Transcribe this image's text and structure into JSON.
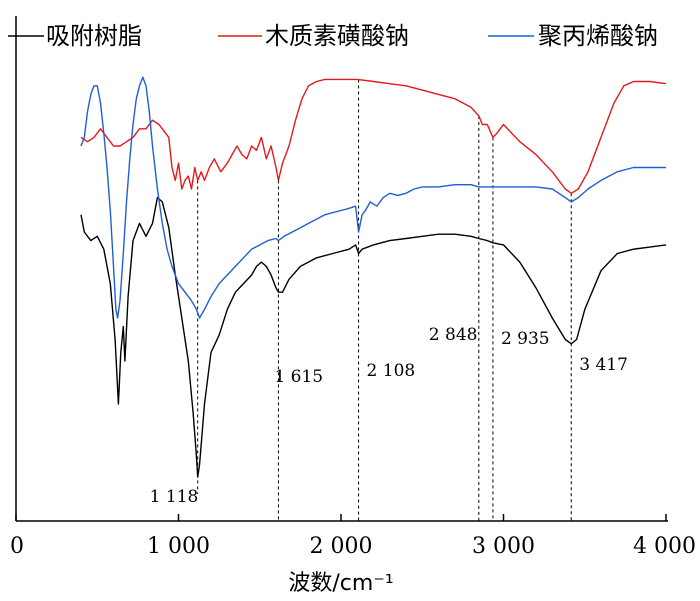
{
  "chart_data": {
    "type": "line",
    "xlabel": "波数/cm⁻¹",
    "ylabel": "",
    "xlim": [
      0,
      4000
    ],
    "ylim": [
      0,
      100
    ],
    "x_ticks": [
      0,
      1000,
      2000,
      3000,
      4000
    ],
    "x_tick_labels": [
      "0",
      "1 000",
      "2 000",
      "3 000",
      "4 000"
    ],
    "grid": false,
    "legend_position": "top",
    "series": [
      {
        "name": "吸附树脂",
        "color": "#000000",
        "points": [
          [
            400,
            64
          ],
          [
            420,
            60
          ],
          [
            460,
            58
          ],
          [
            500,
            59
          ],
          [
            540,
            56
          ],
          [
            580,
            48
          ],
          [
            610,
            35
          ],
          [
            630,
            20
          ],
          [
            645,
            32
          ],
          [
            660,
            38
          ],
          [
            670,
            30
          ],
          [
            690,
            45
          ],
          [
            720,
            58
          ],
          [
            760,
            62
          ],
          [
            800,
            59
          ],
          [
            840,
            62
          ],
          [
            870,
            68
          ],
          [
            900,
            67
          ],
          [
            940,
            61
          ],
          [
            980,
            50
          ],
          [
            1020,
            40
          ],
          [
            1060,
            30
          ],
          [
            1090,
            18
          ],
          [
            1110,
            8
          ],
          [
            1118,
            3
          ],
          [
            1130,
            6
          ],
          [
            1160,
            20
          ],
          [
            1200,
            32
          ],
          [
            1250,
            36
          ],
          [
            1300,
            42
          ],
          [
            1350,
            46
          ],
          [
            1400,
            48
          ],
          [
            1450,
            50
          ],
          [
            1480,
            52
          ],
          [
            1510,
            53
          ],
          [
            1540,
            52
          ],
          [
            1570,
            50
          ],
          [
            1600,
            47
          ],
          [
            1615,
            46
          ],
          [
            1640,
            46
          ],
          [
            1680,
            49
          ],
          [
            1750,
            52
          ],
          [
            1850,
            54
          ],
          [
            1950,
            55
          ],
          [
            2050,
            56
          ],
          [
            2090,
            57
          ],
          [
            2108,
            55
          ],
          [
            2130,
            56
          ],
          [
            2200,
            57
          ],
          [
            2300,
            58
          ],
          [
            2400,
            58.5
          ],
          [
            2500,
            59
          ],
          [
            2600,
            59.5
          ],
          [
            2700,
            59.5
          ],
          [
            2800,
            59
          ],
          [
            2848,
            58.5
          ],
          [
            2900,
            58
          ],
          [
            2935,
            57.5
          ],
          [
            3000,
            57
          ],
          [
            3100,
            53
          ],
          [
            3200,
            47
          ],
          [
            3300,
            40
          ],
          [
            3380,
            35
          ],
          [
            3417,
            34
          ],
          [
            3450,
            35
          ],
          [
            3500,
            42
          ],
          [
            3600,
            51
          ],
          [
            3700,
            55
          ],
          [
            3800,
            56
          ],
          [
            3900,
            56.5
          ],
          [
            4000,
            57
          ]
        ]
      },
      {
        "name": "木质素磺酸钠",
        "color": "#e31a1c",
        "points": [
          [
            400,
            82
          ],
          [
            440,
            81
          ],
          [
            480,
            82
          ],
          [
            520,
            84
          ],
          [
            560,
            82
          ],
          [
            600,
            80
          ],
          [
            640,
            80
          ],
          [
            680,
            81
          ],
          [
            720,
            82
          ],
          [
            760,
            84
          ],
          [
            800,
            84
          ],
          [
            840,
            86
          ],
          [
            880,
            85
          ],
          [
            900,
            84
          ],
          [
            940,
            82
          ],
          [
            960,
            75
          ],
          [
            980,
            72
          ],
          [
            1000,
            76
          ],
          [
            1020,
            70
          ],
          [
            1040,
            72
          ],
          [
            1060,
            73
          ],
          [
            1080,
            70
          ],
          [
            1100,
            75
          ],
          [
            1118,
            72
          ],
          [
            1140,
            74
          ],
          [
            1160,
            72
          ],
          [
            1190,
            75
          ],
          [
            1220,
            77
          ],
          [
            1260,
            74
          ],
          [
            1300,
            76
          ],
          [
            1330,
            78
          ],
          [
            1360,
            80
          ],
          [
            1390,
            78
          ],
          [
            1420,
            77
          ],
          [
            1450,
            80
          ],
          [
            1480,
            79
          ],
          [
            1510,
            82
          ],
          [
            1540,
            77
          ],
          [
            1570,
            80
          ],
          [
            1600,
            75
          ],
          [
            1615,
            72
          ],
          [
            1640,
            76
          ],
          [
            1680,
            80
          ],
          [
            1720,
            86
          ],
          [
            1760,
            91
          ],
          [
            1800,
            94
          ],
          [
            1850,
            95
          ],
          [
            1900,
            95.5
          ],
          [
            2000,
            95.5
          ],
          [
            2100,
            95.5
          ],
          [
            2200,
            95
          ],
          [
            2300,
            94.5
          ],
          [
            2400,
            94
          ],
          [
            2500,
            93
          ],
          [
            2600,
            92
          ],
          [
            2700,
            91
          ],
          [
            2800,
            89
          ],
          [
            2848,
            87
          ],
          [
            2870,
            85
          ],
          [
            2900,
            85
          ],
          [
            2935,
            82
          ],
          [
            2960,
            83
          ],
          [
            3000,
            85
          ],
          [
            3050,
            83
          ],
          [
            3100,
            81
          ],
          [
            3200,
            78
          ],
          [
            3300,
            74
          ],
          [
            3380,
            70
          ],
          [
            3417,
            69
          ],
          [
            3460,
            70
          ],
          [
            3520,
            74
          ],
          [
            3600,
            82
          ],
          [
            3680,
            90
          ],
          [
            3740,
            94
          ],
          [
            3800,
            95
          ],
          [
            3900,
            95
          ],
          [
            4000,
            94.5
          ]
        ]
      },
      {
        "name": "聚丙烯酸钠",
        "color": "#1f5fd6",
        "points": [
          [
            400,
            80
          ],
          [
            420,
            82
          ],
          [
            440,
            88
          ],
          [
            460,
            92
          ],
          [
            480,
            94
          ],
          [
            500,
            94
          ],
          [
            520,
            90
          ],
          [
            540,
            83
          ],
          [
            560,
            75
          ],
          [
            580,
            65
          ],
          [
            600,
            52
          ],
          [
            615,
            42
          ],
          [
            625,
            40
          ],
          [
            640,
            44
          ],
          [
            660,
            55
          ],
          [
            680,
            67
          ],
          [
            700,
            77
          ],
          [
            720,
            85
          ],
          [
            740,
            91
          ],
          [
            760,
            94
          ],
          [
            780,
            96
          ],
          [
            800,
            94
          ],
          [
            820,
            88
          ],
          [
            840,
            80
          ],
          [
            870,
            70
          ],
          [
            900,
            62
          ],
          [
            930,
            56
          ],
          [
            960,
            52
          ],
          [
            1000,
            48
          ],
          [
            1040,
            46
          ],
          [
            1080,
            44
          ],
          [
            1110,
            42
          ],
          [
            1130,
            40
          ],
          [
            1160,
            42
          ],
          [
            1200,
            45
          ],
          [
            1250,
            48
          ],
          [
            1300,
            50
          ],
          [
            1350,
            52
          ],
          [
            1400,
            54
          ],
          [
            1450,
            56
          ],
          [
            1500,
            57
          ],
          [
            1550,
            58
          ],
          [
            1600,
            58.5
          ],
          [
            1615,
            58
          ],
          [
            1650,
            59
          ],
          [
            1700,
            60
          ],
          [
            1750,
            61
          ],
          [
            1800,
            62
          ],
          [
            1850,
            63
          ],
          [
            1900,
            64
          ],
          [
            1950,
            64.5
          ],
          [
            2000,
            65
          ],
          [
            2050,
            65.5
          ],
          [
            2090,
            66
          ],
          [
            2108,
            60
          ],
          [
            2130,
            64
          ],
          [
            2150,
            65
          ],
          [
            2180,
            67
          ],
          [
            2220,
            66
          ],
          [
            2260,
            68
          ],
          [
            2300,
            69
          ],
          [
            2350,
            68.5
          ],
          [
            2400,
            69
          ],
          [
            2450,
            70
          ],
          [
            2500,
            70.5
          ],
          [
            2600,
            70.5
          ],
          [
            2700,
            71
          ],
          [
            2800,
            71
          ],
          [
            2848,
            70.5
          ],
          [
            2900,
            70.5
          ],
          [
            2935,
            70.5
          ],
          [
            3000,
            70.5
          ],
          [
            3100,
            70.5
          ],
          [
            3200,
            70.5
          ],
          [
            3300,
            70
          ],
          [
            3380,
            68
          ],
          [
            3417,
            67
          ],
          [
            3460,
            68
          ],
          [
            3520,
            70
          ],
          [
            3600,
            72
          ],
          [
            3700,
            74
          ],
          [
            3800,
            75
          ],
          [
            3900,
            75
          ],
          [
            4000,
            75
          ]
        ]
      }
    ],
    "annotations": [
      {
        "x": 1118,
        "label": "1 118"
      },
      {
        "x": 1615,
        "label": "1 615"
      },
      {
        "x": 2108,
        "label": "2 108"
      },
      {
        "x": 2848,
        "label": "2 848"
      },
      {
        "x": 2935,
        "label": "2 935"
      },
      {
        "x": 3417,
        "label": "3 417"
      }
    ]
  }
}
